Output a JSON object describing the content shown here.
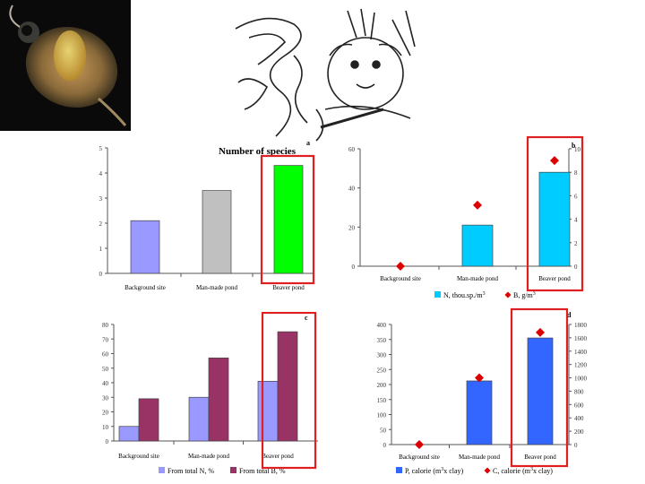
{
  "colors": {
    "lavender": "#9999ff",
    "gray": "#c0c0c0",
    "green": "#00ff00",
    "cyan": "#00ccff",
    "maroon": "#993366",
    "blue": "#3366ff",
    "red": "#dd0000",
    "highlight": "#e02020"
  },
  "chart_data": [
    {
      "type": "bar",
      "panel_letter": "a",
      "title": "Number of species",
      "categories": [
        "Background site",
        "Man-made pond",
        "Beaver pond"
      ],
      "values": [
        2.1,
        3.3,
        4.3
      ],
      "bar_colors": [
        "#9999ff",
        "#c0c0c0",
        "#00ff00"
      ],
      "ylim": [
        0,
        5
      ],
      "yticks": [
        "0",
        "1",
        "2",
        "3",
        "4",
        "5"
      ],
      "highlight_category": 2
    },
    {
      "type": "bar",
      "panel_letter": "b",
      "categories": [
        "Background site",
        "Man-made pond",
        "Beaver pond"
      ],
      "series": [
        {
          "name": "N, thou.sp./m3",
          "values": [
            0,
            21,
            48
          ],
          "axis": "left",
          "kind": "bar",
          "color": "#00ccff"
        },
        {
          "name": "B, g/m3",
          "values": [
            0,
            5.2,
            9
          ],
          "axis": "right",
          "kind": "marker",
          "color": "#dd0000"
        }
      ],
      "ylim_left": [
        0,
        60
      ],
      "yticks_left": [
        "0",
        "20",
        "40",
        "60"
      ],
      "ylim_right": [
        0,
        10
      ],
      "yticks_right": [
        "0",
        "2",
        "4",
        "6",
        "8",
        "10"
      ],
      "legend": [
        {
          "text": "N, thou.sp./m",
          "sup": "3"
        },
        {
          "text": "B, g/m",
          "sup": "3"
        }
      ],
      "legend_position": "bottom",
      "highlight_category": 2
    },
    {
      "type": "bar",
      "panel_letter": "c",
      "categories": [
        "Background site",
        "Man-made pond",
        "Beaver pond"
      ],
      "series": [
        {
          "name": "From total N, %",
          "values": [
            10,
            30,
            41
          ],
          "color": "#9999ff"
        },
        {
          "name": "From total B, %",
          "values": [
            29,
            57,
            75
          ],
          "color": "#993366"
        }
      ],
      "ylim": [
        0,
        80
      ],
      "yticks": [
        "0",
        "10",
        "20",
        "30",
        "40",
        "50",
        "60",
        "70",
        "80"
      ],
      "legend": [
        {
          "text": "From total N, %"
        },
        {
          "text": "From total B, %"
        }
      ],
      "legend_position": "bottom",
      "highlight_category": 2
    },
    {
      "type": "bar",
      "panel_letter": "d",
      "categories": [
        "Background site",
        "Man-made pond",
        "Beaver pond"
      ],
      "series": [
        {
          "name": "P, calorie (m3 x clay)",
          "values": [
            0,
            212,
            355
          ],
          "axis": "left",
          "kind": "bar",
          "color": "#3366ff"
        },
        {
          "name": "C, calorie (m3 x clay)",
          "values": [
            0,
            1000,
            1680
          ],
          "axis": "right",
          "kind": "marker",
          "color": "#dd0000"
        }
      ],
      "ylim_left": [
        0,
        400
      ],
      "yticks_left": [
        "0",
        "50",
        "100",
        "150",
        "200",
        "250",
        "300",
        "350",
        "400"
      ],
      "ylim_right": [
        0,
        1800
      ],
      "yticks_right": [
        "0",
        "200",
        "400",
        "600",
        "800",
        "1000",
        "1200",
        "1400",
        "1600",
        "1800"
      ],
      "legend": [
        {
          "text": "P,  calorie (m",
          "sup": "3",
          "tail": "x clay)"
        },
        {
          "text": "C, calorie (m",
          "sup": "3",
          "tail": "x clay)"
        }
      ],
      "legend_position": "bottom",
      "highlight_category": 2
    }
  ]
}
